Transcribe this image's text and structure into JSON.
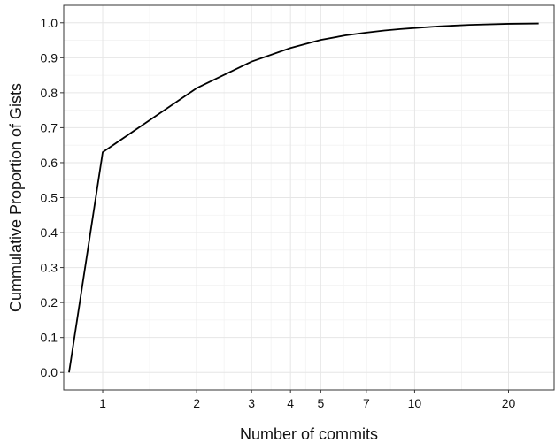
{
  "chart_data": {
    "type": "line",
    "title": "",
    "xlabel": "Number of commits",
    "ylabel": "Cummulative Proportion of Gists",
    "x_scale": "log",
    "x_ticks": [
      1,
      2,
      3,
      4,
      5,
      7,
      10,
      20
    ],
    "x_tick_labels": [
      "1",
      "2",
      "3",
      "4",
      "5",
      "7",
      "10",
      "20"
    ],
    "y_ticks": [
      0.0,
      0.1,
      0.2,
      0.3,
      0.4,
      0.5,
      0.6,
      0.7,
      0.8,
      0.9,
      1.0
    ],
    "y_tick_labels": [
      "0.0",
      "0.1",
      "0.2",
      "0.3",
      "0.4",
      "0.5",
      "0.6",
      "0.7",
      "0.8",
      "0.9",
      "1.0"
    ],
    "xlim": [
      0.75,
      28
    ],
    "ylim": [
      -0.05,
      1.05
    ],
    "grid": true,
    "series": [
      {
        "x": [
          0.78,
          1,
          2,
          3,
          4,
          5,
          6,
          7,
          8,
          9,
          10,
          12,
          15,
          20,
          25
        ],
        "y": [
          0.0,
          0.63,
          0.813,
          0.889,
          0.928,
          0.951,
          0.964,
          0.972,
          0.978,
          0.982,
          0.985,
          0.99,
          0.994,
          0.997,
          0.998
        ]
      }
    ],
    "colors": {
      "line": "#000000",
      "grid_major": "#e6e6e6",
      "grid_minor": "#f2f2f2",
      "axis_tick": "#333333"
    }
  }
}
